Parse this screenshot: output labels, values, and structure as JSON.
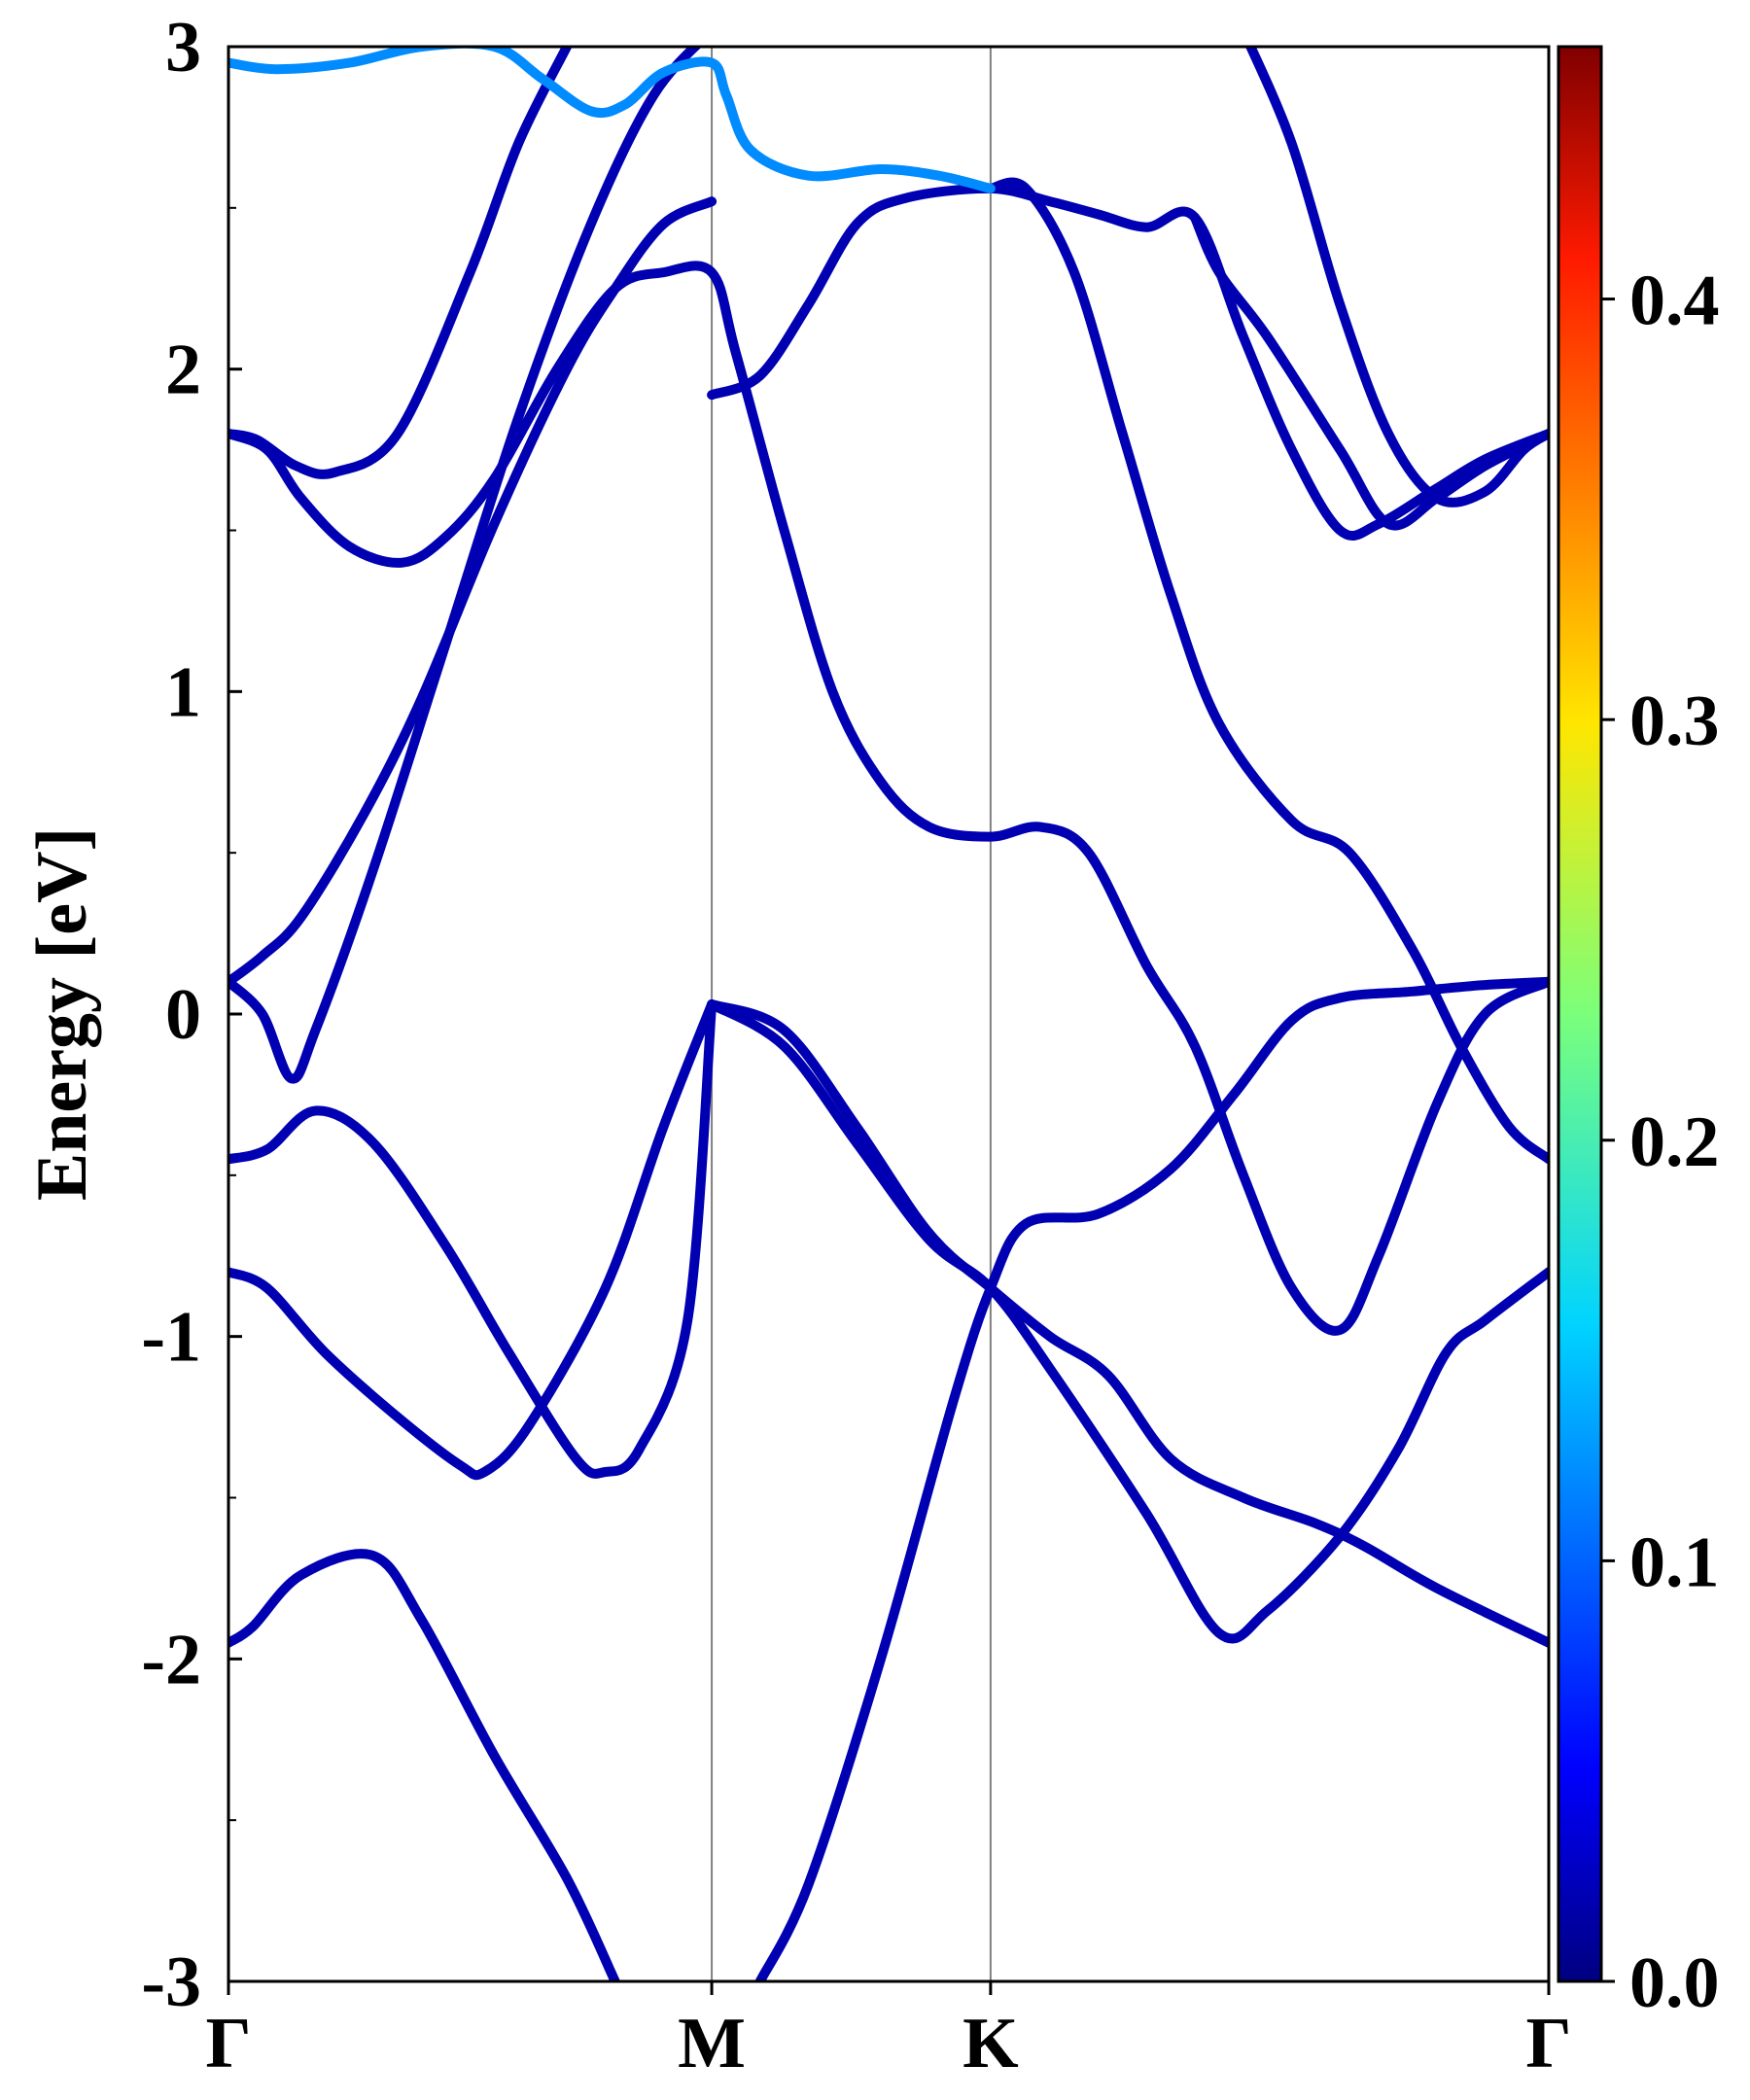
{
  "chart_data": {
    "type": "line",
    "ylabel": "Energy [eV]",
    "xlabel": "",
    "ylim": [
      -3,
      3
    ],
    "xlim": [
      0,
      2.732
    ],
    "yticks": [
      -3,
      -2,
      -1,
      0,
      1,
      2,
      3
    ],
    "yticks_minor": [
      -2.5,
      -1.5,
      -0.5,
      0.5,
      1.5,
      2.5
    ],
    "kpoints": [
      {
        "label": "Γ",
        "x": 0
      },
      {
        "label": "M",
        "x": 1.0
      },
      {
        "label": "K",
        "x": 1.577
      },
      {
        "label": "Γ",
        "x": 2.732
      }
    ],
    "grid": false,
    "colorbar": {
      "colormap": "jet",
      "range": [
        0.0,
        0.46
      ],
      "ticks": [
        {
          "value": 0.0,
          "label": "0.0"
        },
        {
          "value": 0.1,
          "label": "0.1"
        },
        {
          "value": 0.2,
          "label": "0.2"
        },
        {
          "value": 0.3,
          "label": "0.3"
        },
        {
          "value": 0.4,
          "label": "0.4"
        }
      ]
    },
    "series": [
      {
        "c": 0.02,
        "points": [
          [
            0,
            -1.95
          ],
          [
            0.05,
            -1.9
          ],
          [
            0.15,
            -1.74
          ],
          [
            0.3,
            -1.68
          ],
          [
            0.4,
            -1.88
          ],
          [
            0.55,
            -2.3
          ],
          [
            0.7,
            -2.68
          ],
          [
            0.8,
            -3.0
          ]
        ]
      },
      {
        "c": 0.02,
        "points": [
          [
            1.1,
            -3.0
          ],
          [
            1.2,
            -2.7
          ],
          [
            1.35,
            -2.0
          ],
          [
            1.5,
            -1.2
          ],
          [
            1.577,
            -0.85
          ],
          [
            1.65,
            -0.65
          ],
          [
            1.8,
            -0.62
          ],
          [
            1.95,
            -0.48
          ],
          [
            2.08,
            -0.25
          ],
          [
            2.2,
            -0.02
          ],
          [
            2.3,
            0.05
          ],
          [
            2.45,
            0.07
          ],
          [
            2.6,
            0.09
          ],
          [
            2.732,
            0.1
          ]
        ]
      },
      {
        "c": 0.02,
        "points": [
          [
            0,
            -0.45
          ],
          [
            0.08,
            -0.42
          ],
          [
            0.18,
            -0.3
          ],
          [
            0.3,
            -0.4
          ],
          [
            0.45,
            -0.72
          ],
          [
            0.58,
            -1.05
          ],
          [
            0.72,
            -1.38
          ],
          [
            0.78,
            -1.42
          ],
          [
            0.85,
            -1.35
          ],
          [
            0.95,
            -0.95
          ],
          [
            1.0,
            0.03
          ]
        ]
      },
      {
        "c": 0.02,
        "points": [
          [
            0,
            -0.8
          ],
          [
            0.08,
            -0.85
          ],
          [
            0.2,
            -1.05
          ],
          [
            0.35,
            -1.25
          ],
          [
            0.48,
            -1.4
          ],
          [
            0.53,
            -1.42
          ],
          [
            0.62,
            -1.28
          ],
          [
            0.78,
            -0.85
          ],
          [
            0.9,
            -0.35
          ],
          [
            1.0,
            0.03
          ]
        ]
      },
      {
        "c": 0.02,
        "points": [
          [
            0,
            0.1
          ],
          [
            0.07,
            0.0
          ],
          [
            0.13,
            -0.2
          ],
          [
            0.18,
            -0.05
          ],
          [
            0.3,
            0.45
          ],
          [
            0.45,
            1.15
          ],
          [
            0.6,
            1.85
          ],
          [
            0.75,
            2.45
          ],
          [
            0.88,
            2.85
          ],
          [
            1.0,
            3.05
          ]
        ]
      },
      {
        "c": 0.02,
        "points": [
          [
            0,
            0.1
          ],
          [
            0.07,
            0.18
          ],
          [
            0.15,
            0.3
          ],
          [
            0.28,
            0.62
          ],
          [
            0.4,
            0.98
          ],
          [
            0.55,
            1.52
          ],
          [
            0.7,
            2.0
          ],
          [
            0.8,
            2.25
          ],
          [
            0.9,
            2.45
          ],
          [
            1.0,
            2.52
          ]
        ]
      },
      {
        "c": 0.02,
        "points": [
          [
            1.0,
            0.03
          ],
          [
            1.15,
            -0.05
          ],
          [
            1.3,
            -0.35
          ],
          [
            1.45,
            -0.68
          ],
          [
            1.577,
            -0.85
          ],
          [
            1.7,
            -1.0
          ],
          [
            1.82,
            -1.12
          ],
          [
            1.95,
            -1.38
          ],
          [
            2.1,
            -1.5
          ],
          [
            2.25,
            -1.58
          ],
          [
            2.35,
            -1.65
          ],
          [
            2.5,
            -1.78
          ],
          [
            2.732,
            -1.95
          ]
        ]
      },
      {
        "c": 0.02,
        "points": [
          [
            1.0,
            0.03
          ],
          [
            1.15,
            -0.1
          ],
          [
            1.3,
            -0.4
          ],
          [
            1.45,
            -0.7
          ],
          [
            1.577,
            -0.85
          ],
          [
            1.7,
            -1.1
          ],
          [
            1.9,
            -1.55
          ],
          [
            2.05,
            -1.92
          ],
          [
            2.15,
            -1.85
          ],
          [
            2.3,
            -1.62
          ],
          [
            2.42,
            -1.35
          ],
          [
            2.52,
            -1.05
          ],
          [
            2.6,
            -0.95
          ],
          [
            2.732,
            -0.8
          ]
        ]
      },
      {
        "c": 0.02,
        "points": [
          [
            0,
            1.8
          ],
          [
            0.06,
            1.78
          ],
          [
            0.14,
            1.7
          ],
          [
            0.22,
            1.68
          ],
          [
            0.35,
            1.8
          ],
          [
            0.5,
            2.3
          ],
          [
            0.6,
            2.7
          ],
          [
            0.7,
            3.0
          ]
        ]
      },
      {
        "c": 0.02,
        "points": [
          [
            0,
            1.8
          ],
          [
            0.08,
            1.75
          ],
          [
            0.15,
            1.6
          ],
          [
            0.25,
            1.45
          ],
          [
            0.36,
            1.4
          ],
          [
            0.45,
            1.48
          ],
          [
            0.55,
            1.66
          ],
          [
            0.68,
            2.0
          ],
          [
            0.8,
            2.25
          ],
          [
            0.9,
            2.3
          ],
          [
            1.0,
            2.3
          ],
          [
            1.05,
            2.05
          ],
          [
            1.15,
            1.5
          ],
          [
            1.25,
            1.0
          ],
          [
            1.35,
            0.72
          ],
          [
            1.45,
            0.58
          ],
          [
            1.577,
            0.55
          ],
          [
            1.68,
            0.58
          ],
          [
            1.78,
            0.5
          ],
          [
            1.9,
            0.15
          ],
          [
            2.0,
            -0.1
          ],
          [
            2.1,
            -0.5
          ],
          [
            2.2,
            -0.85
          ],
          [
            2.3,
            -0.98
          ],
          [
            2.38,
            -0.75
          ],
          [
            2.5,
            -0.28
          ],
          [
            2.6,
            0.0
          ],
          [
            2.732,
            0.1
          ]
        ]
      },
      {
        "c": 0.02,
        "points": [
          [
            1.0,
            1.92
          ],
          [
            1.1,
            1.98
          ],
          [
            1.2,
            2.2
          ],
          [
            1.3,
            2.45
          ],
          [
            1.4,
            2.53
          ],
          [
            1.577,
            2.56
          ],
          [
            1.7,
            2.52
          ],
          [
            1.8,
            2.48
          ],
          [
            1.9,
            2.44
          ],
          [
            2.0,
            2.47
          ],
          [
            2.1,
            2.1
          ],
          [
            2.2,
            1.75
          ],
          [
            2.3,
            1.5
          ],
          [
            2.38,
            1.52
          ],
          [
            2.5,
            1.63
          ],
          [
            2.6,
            1.72
          ],
          [
            2.732,
            1.8
          ]
        ]
      },
      {
        "c": 0.02,
        "points": [
          [
            2.1,
            3.05
          ],
          [
            2.2,
            2.7
          ],
          [
            2.3,
            2.2
          ],
          [
            2.4,
            1.8
          ],
          [
            2.5,
            1.6
          ],
          [
            2.6,
            1.62
          ],
          [
            2.68,
            1.75
          ],
          [
            2.732,
            1.8
          ]
        ]
      },
      {
        "c": 0.02,
        "points": [
          [
            1.577,
            2.56
          ],
          [
            1.65,
            2.56
          ],
          [
            1.75,
            2.3
          ],
          [
            1.85,
            1.8
          ],
          [
            1.95,
            1.3
          ],
          [
            2.05,
            0.9
          ],
          [
            2.2,
            0.6
          ],
          [
            2.32,
            0.5
          ],
          [
            2.45,
            0.2
          ],
          [
            2.55,
            -0.1
          ],
          [
            2.65,
            -0.35
          ],
          [
            2.732,
            -0.45
          ]
        ]
      },
      {
        "c": 0.02,
        "points": [
          [
            2.0,
            2.47
          ],
          [
            2.05,
            2.3
          ],
          [
            2.15,
            2.1
          ],
          [
            2.3,
            1.75
          ],
          [
            2.4,
            1.52
          ],
          [
            2.5,
            1.6
          ],
          [
            2.6,
            1.7
          ],
          [
            2.732,
            1.8
          ]
        ]
      },
      {
        "c": 0.12,
        "points": [
          [
            0,
            2.95
          ],
          [
            0.1,
            2.93
          ],
          [
            0.25,
            2.95
          ],
          [
            0.4,
            3.0
          ],
          [
            0.55,
            3.0
          ],
          [
            0.65,
            2.9
          ],
          [
            0.75,
            2.8
          ],
          [
            0.82,
            2.82
          ],
          [
            0.9,
            2.92
          ],
          [
            1.0,
            2.95
          ],
          [
            1.03,
            2.85
          ],
          [
            1.08,
            2.68
          ],
          [
            1.2,
            2.6
          ],
          [
            1.35,
            2.62
          ],
          [
            1.47,
            2.6
          ],
          [
            1.577,
            2.56
          ]
        ]
      }
    ]
  }
}
